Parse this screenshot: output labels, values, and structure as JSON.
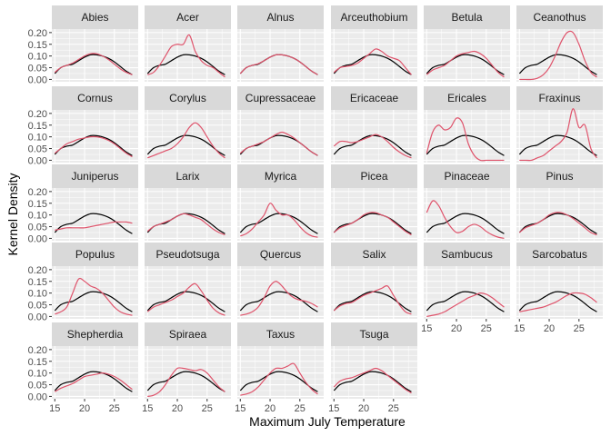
{
  "chart_data": {
    "type": "line",
    "title": "",
    "xlabel": "Maximum July Temperature",
    "ylabel": "Kernel Density",
    "xlim": [
      14.5,
      29
    ],
    "ylim": [
      -0.01,
      0.215
    ],
    "x_ticks": [
      15,
      20,
      25
    ],
    "x_tick_labels": [
      "15",
      "20",
      "25"
    ],
    "y_ticks": [
      0.0,
      0.05,
      0.1,
      0.15,
      0.2
    ],
    "y_tick_labels": [
      "0.00",
      "0.05",
      "0.10",
      "0.15",
      "0.20"
    ],
    "grid": true,
    "legend": "none",
    "facet_layout": {
      "ncol": 6,
      "nrow": 5
    },
    "colors": {
      "panel_background": "#ebebeb",
      "strip_background": "#d9d9d9",
      "reference_line": "#000000",
      "taxon_line": "#df536b",
      "grid": "#ffffff"
    },
    "x": [
      15,
      16,
      17,
      18,
      19,
      20,
      21,
      22,
      23,
      24,
      25,
      26,
      27,
      28
    ],
    "reference": [
      0.025,
      0.05,
      0.06,
      0.065,
      0.08,
      0.095,
      0.105,
      0.105,
      0.1,
      0.09,
      0.075,
      0.055,
      0.035,
      0.02
    ],
    "panels": [
      {
        "name": "Abies",
        "values": [
          0.03,
          0.05,
          0.06,
          0.07,
          0.085,
          0.1,
          0.11,
          0.11,
          0.1,
          0.085,
          0.065,
          0.045,
          0.03,
          0.02
        ]
      },
      {
        "name": "Acer",
        "values": [
          0.02,
          0.03,
          0.06,
          0.1,
          0.14,
          0.15,
          0.15,
          0.19,
          0.12,
          0.08,
          0.06,
          0.05,
          0.03,
          0.01
        ]
      },
      {
        "name": "Alnus",
        "values": [
          0.025,
          0.05,
          0.06,
          0.067,
          0.08,
          0.095,
          0.105,
          0.105,
          0.1,
          0.09,
          0.075,
          0.055,
          0.035,
          0.02
        ]
      },
      {
        "name": "Arceuthobium",
        "values": [
          0.03,
          0.05,
          0.055,
          0.06,
          0.07,
          0.09,
          0.11,
          0.13,
          0.12,
          0.1,
          0.09,
          0.08,
          0.05,
          0.02
        ]
      },
      {
        "name": "Betula",
        "values": [
          0.02,
          0.04,
          0.05,
          0.06,
          0.08,
          0.1,
          0.11,
          0.115,
          0.12,
          0.11,
          0.09,
          0.06,
          0.03,
          0.01
        ]
      },
      {
        "name": "Ceanothus",
        "values": [
          0.0,
          0.0,
          0.0,
          0.005,
          0.02,
          0.05,
          0.1,
          0.16,
          0.2,
          0.2,
          0.15,
          0.08,
          0.03,
          0.01
        ]
      },
      {
        "name": "Cornus",
        "values": [
          0.03,
          0.05,
          0.07,
          0.08,
          0.09,
          0.095,
          0.1,
          0.1,
          0.095,
          0.085,
          0.07,
          0.05,
          0.03,
          0.015
        ]
      },
      {
        "name": "Corylus",
        "values": [
          0.01,
          0.02,
          0.03,
          0.04,
          0.05,
          0.07,
          0.1,
          0.14,
          0.16,
          0.14,
          0.1,
          0.06,
          0.03,
          0.01
        ]
      },
      {
        "name": "Cupressaceae",
        "values": [
          0.03,
          0.05,
          0.06,
          0.07,
          0.08,
          0.095,
          0.11,
          0.12,
          0.11,
          0.095,
          0.075,
          0.055,
          0.035,
          0.02
        ]
      },
      {
        "name": "Ericaceae",
        "values": [
          0.06,
          0.08,
          0.08,
          0.075,
          0.08,
          0.09,
          0.1,
          0.11,
          0.1,
          0.08,
          0.055,
          0.035,
          0.02,
          0.01
        ]
      },
      {
        "name": "Ericales",
        "values": [
          0.03,
          0.12,
          0.15,
          0.13,
          0.14,
          0.18,
          0.16,
          0.07,
          0.02,
          0.0,
          0.0,
          0.0,
          0.0,
          0.0
        ]
      },
      {
        "name": "Fraxinus",
        "values": [
          0.0,
          0.0,
          0.0,
          0.01,
          0.02,
          0.04,
          0.06,
          0.08,
          0.12,
          0.22,
          0.14,
          0.15,
          0.05,
          0.01
        ]
      },
      {
        "name": "Juniperus",
        "values": [
          0.035,
          0.04,
          0.045,
          0.045,
          0.045,
          0.045,
          0.05,
          0.055,
          0.06,
          0.065,
          0.07,
          0.07,
          0.07,
          0.065
        ]
      },
      {
        "name": "Larix",
        "values": [
          0.03,
          0.05,
          0.06,
          0.07,
          0.08,
          0.095,
          0.105,
          0.1,
          0.09,
          0.08,
          0.06,
          0.04,
          0.025,
          0.015
        ]
      },
      {
        "name": "Myrica",
        "values": [
          0.01,
          0.02,
          0.04,
          0.07,
          0.1,
          0.15,
          0.12,
          0.1,
          0.1,
          0.08,
          0.05,
          0.025,
          0.01,
          0.005
        ]
      },
      {
        "name": "Picea",
        "values": [
          0.025,
          0.045,
          0.055,
          0.065,
          0.08,
          0.1,
          0.11,
          0.11,
          0.1,
          0.09,
          0.07,
          0.05,
          0.03,
          0.015
        ]
      },
      {
        "name": "Pinaceae",
        "values": [
          0.11,
          0.16,
          0.14,
          0.09,
          0.05,
          0.025,
          0.03,
          0.05,
          0.06,
          0.05,
          0.03,
          0.015,
          0.005,
          0.0
        ]
      },
      {
        "name": "Pinus",
        "values": [
          0.025,
          0.045,
          0.055,
          0.065,
          0.08,
          0.1,
          0.11,
          0.11,
          0.1,
          0.085,
          0.065,
          0.045,
          0.025,
          0.015
        ]
      },
      {
        "name": "Populus",
        "values": [
          0.01,
          0.02,
          0.04,
          0.1,
          0.16,
          0.15,
          0.13,
          0.12,
          0.1,
          0.07,
          0.04,
          0.02,
          0.01,
          0.005
        ]
      },
      {
        "name": "Pseudotsuga",
        "values": [
          0.02,
          0.04,
          0.05,
          0.06,
          0.07,
          0.085,
          0.1,
          0.125,
          0.14,
          0.11,
          0.07,
          0.035,
          0.015,
          0.005
        ]
      },
      {
        "name": "Quercus",
        "values": [
          0.005,
          0.01,
          0.02,
          0.04,
          0.08,
          0.13,
          0.15,
          0.13,
          0.1,
          0.08,
          0.07,
          0.065,
          0.055,
          0.04
        ]
      },
      {
        "name": "Salix",
        "values": [
          0.025,
          0.045,
          0.055,
          0.06,
          0.075,
          0.09,
          0.1,
          0.11,
          0.12,
          0.13,
          0.09,
          0.05,
          0.02,
          0.01
        ]
      },
      {
        "name": "Sambucus",
        "values": [
          0.0,
          0.005,
          0.01,
          0.02,
          0.035,
          0.05,
          0.065,
          0.08,
          0.09,
          0.1,
          0.095,
          0.08,
          0.06,
          0.04
        ]
      },
      {
        "name": "Sarcobatus",
        "values": [
          0.02,
          0.025,
          0.03,
          0.035,
          0.04,
          0.05,
          0.06,
          0.075,
          0.09,
          0.1,
          0.1,
          0.095,
          0.08,
          0.06
        ]
      },
      {
        "name": "Shepherdia",
        "values": [
          0.02,
          0.035,
          0.045,
          0.055,
          0.07,
          0.085,
          0.09,
          0.095,
          0.1,
          0.095,
          0.085,
          0.07,
          0.05,
          0.03
        ]
      },
      {
        "name": "Spiraea",
        "values": [
          0.0,
          0.005,
          0.02,
          0.05,
          0.09,
          0.12,
          0.12,
          0.115,
          0.11,
          0.115,
          0.1,
          0.07,
          0.04,
          0.02
        ]
      },
      {
        "name": "Taxus",
        "values": [
          0.005,
          0.01,
          0.02,
          0.04,
          0.07,
          0.1,
          0.12,
          0.12,
          0.13,
          0.14,
          0.1,
          0.06,
          0.03,
          0.01
        ]
      },
      {
        "name": "Tsuga",
        "values": [
          0.04,
          0.065,
          0.075,
          0.08,
          0.09,
          0.1,
          0.11,
          0.12,
          0.11,
          0.09,
          0.07,
          0.05,
          0.03,
          0.015
        ]
      }
    ]
  }
}
